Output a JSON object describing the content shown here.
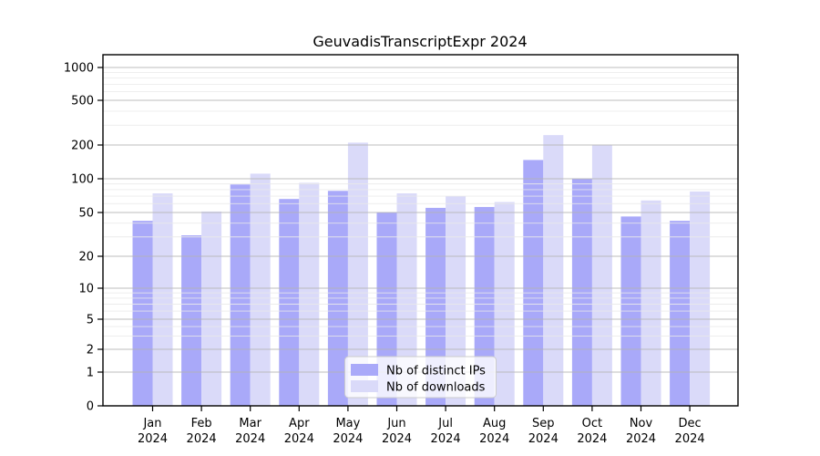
{
  "title": "GeuvadisTranscriptExpr 2024",
  "chart_data": {
    "type": "bar",
    "title": "GeuvadisTranscriptExpr 2024",
    "categories": [
      "Jan 2024",
      "Feb 2024",
      "Mar 2024",
      "Apr 2024",
      "May 2024",
      "Jun 2024",
      "Jul 2024",
      "Aug 2024",
      "Sep 2024",
      "Oct 2024",
      "Nov 2024",
      "Dec 2024"
    ],
    "series": [
      {
        "name": "Nb of distinct IPs",
        "color": "#a9a9f9",
        "values": [
          42,
          31,
          89,
          66,
          78,
          50,
          55,
          56,
          147,
          100,
          46,
          42
        ]
      },
      {
        "name": "Nb of downloads",
        "color": "#dadaf9",
        "values": [
          74,
          51,
          111,
          92,
          210,
          74,
          70,
          62,
          245,
          200,
          64,
          77
        ]
      }
    ],
    "yscale": "symlog",
    "yticks": [
      0,
      1,
      2,
      5,
      10,
      20,
      50,
      100,
      200,
      500,
      1000
    ],
    "ylim": [
      0,
      1300
    ],
    "xlabel": "",
    "ylabel": "",
    "grid": true,
    "legend_position": "lower center"
  },
  "colors": {
    "major_grid": "#b3b3b3",
    "minor_grid": "#e9e9e9",
    "spine": "#000000",
    "text": "#000000",
    "legend_border": "#cccccc",
    "legend_bg": "#ffffff"
  }
}
